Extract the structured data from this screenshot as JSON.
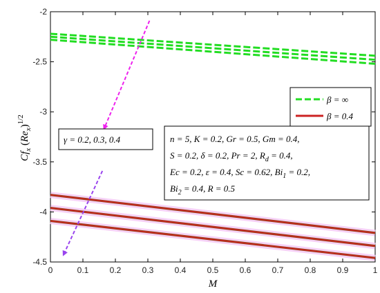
{
  "chart_data": {
    "type": "line",
    "xlabel": "M",
    "ylabel": "Cf_x (Re_x)^{1/2}",
    "ylabel_parts": {
      "cf": "Cf",
      "sub_x1": "x",
      "paren_open": "(",
      "re": "Re",
      "sub_x2": "x",
      "paren_close": ")",
      "exp": "1/2"
    },
    "xlim": [
      0,
      1
    ],
    "ylim": [
      -4.5,
      -2
    ],
    "x_ticks": [
      "0",
      "0.1",
      "0.2",
      "0.3",
      "0.4",
      "0.5",
      "0.6",
      "0.7",
      "0.8",
      "0.9",
      "1"
    ],
    "y_ticks": [
      "-2",
      "-2.5",
      "-3",
      "-3.5",
      "-4",
      "-4.5"
    ],
    "x_tick_values": [
      0,
      0.1,
      0.2,
      0.3,
      0.4,
      0.5,
      0.6,
      0.7,
      0.8,
      0.9,
      1
    ],
    "y_tick_values": [
      -2,
      -2.5,
      -3,
      -3.5,
      -4,
      -4.5
    ],
    "grid": false,
    "legend_placement": "right",
    "colors": {
      "infinity": "#22dd22",
      "finite": "#cc2222",
      "arrow_upper": "#ee22ee",
      "arrow_lower": "#9944ee"
    },
    "series": [
      {
        "group": "infinity",
        "gamma": 0.2,
        "x": [
          0,
          1
        ],
        "y": [
          -2.22,
          -2.44
        ]
      },
      {
        "group": "infinity",
        "gamma": 0.3,
        "x": [
          0,
          1
        ],
        "y": [
          -2.25,
          -2.48
        ]
      },
      {
        "group": "infinity",
        "gamma": 0.4,
        "x": [
          0,
          1
        ],
        "y": [
          -2.28,
          -2.52
        ]
      },
      {
        "group": "finite",
        "gamma": 0.2,
        "x": [
          0,
          1
        ],
        "y": [
          -3.83,
          -4.21
        ]
      },
      {
        "group": "finite",
        "gamma": 0.3,
        "x": [
          0,
          1
        ],
        "y": [
          -3.96,
          -4.34
        ]
      },
      {
        "group": "finite",
        "gamma": 0.4,
        "x": [
          0,
          1
        ],
        "y": [
          -4.09,
          -4.46
        ]
      }
    ],
    "legend": [
      {
        "key": "infinity",
        "sym": "β",
        "rest": " = ∞"
      },
      {
        "key": "finite",
        "sym": "β",
        "rest": " = 0.4"
      }
    ],
    "gamma_annotation": {
      "sym": "γ",
      "rest": " = 0.2, 0.3, 0.4"
    },
    "parameter_box": {
      "line1": "n = 5, K = 0.2, Gr = 0.5, Gm = 0.4,",
      "line2_a": "S = 0.2, ",
      "line2_delta": "δ",
      "line2_b": " = 0.2, Pr = 2, R",
      "line2_sub": "d",
      "line2_c": " = 0.4,",
      "line3_a": "Ec = 0.2, ",
      "line3_eps": "ε",
      "line3_b": " = 0.4, Sc = 0.62, Bi",
      "line3_sub": "1",
      "line3_c": " = 0.2,",
      "line4_a": "Bi",
      "line4_sub": "2",
      "line4_b": " = 0.4, R = 0.5"
    },
    "arrows": [
      {
        "color_key": "arrow_upper",
        "from": [
          0.305,
          -2.09
        ],
        "to": [
          0.165,
          -3.17
        ]
      },
      {
        "color_key": "arrow_lower",
        "from": [
          0.16,
          -3.59
        ],
        "to": [
          0.04,
          -4.43
        ]
      }
    ]
  }
}
